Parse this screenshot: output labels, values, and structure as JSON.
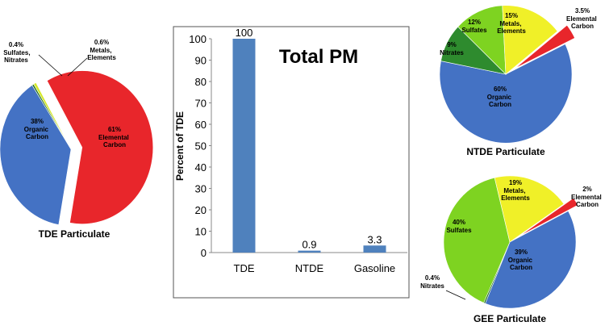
{
  "chart_data": [
    {
      "type": "pie",
      "title": "TDE Particulate",
      "slices": [
        {
          "label": "Organic Carbon",
          "pct_text": "38%",
          "value": 38,
          "color": "#4472c4"
        },
        {
          "label": "Sulfates, Nitrates",
          "pct_text": "0.4%",
          "value": 0.4,
          "color": "#1e6b1e"
        },
        {
          "label": "Metals, Elements",
          "pct_text": "0.6%",
          "value": 0.6,
          "color": "#d4e829"
        },
        {
          "label": "Elemental Carbon",
          "pct_text": "61%",
          "value": 61,
          "color": "#e8262b",
          "exploded": true
        }
      ]
    },
    {
      "type": "bar",
      "title": "Total PM",
      "categories": [
        "TDE",
        "NTDE",
        "Gasoline"
      ],
      "values": [
        100,
        0.9,
        3.3
      ],
      "value_labels": [
        "100",
        "0.9",
        "3.3"
      ],
      "ylabel": "Percent of TDE",
      "ylim": [
        0,
        100
      ],
      "yticks": [
        0,
        10,
        20,
        30,
        40,
        50,
        60,
        70,
        80,
        90,
        100
      ],
      "color": "#4f81bd"
    },
    {
      "type": "pie",
      "title": "NTDE Particulate",
      "slices": [
        {
          "label": "Organic Carbon",
          "pct_text": "60%",
          "value": 60,
          "color": "#4472c4"
        },
        {
          "label": "Nitrates",
          "pct_text": "9%",
          "value": 9,
          "color": "#2e8b2e"
        },
        {
          "label": "Sulfates",
          "pct_text": "12%",
          "value": 12,
          "color": "#7ed321"
        },
        {
          "label": "Metals, Elements",
          "pct_text": "15%",
          "value": 15,
          "color": "#f0f028"
        },
        {
          "label": "Elemental Carbon",
          "pct_text": "3.5%",
          "value": 3.5,
          "color": "#e8262b",
          "exploded": true
        }
      ]
    },
    {
      "type": "pie",
      "title": "GEE Particulate",
      "slices": [
        {
          "label": "Organic Carbon",
          "pct_text": "39%",
          "value": 39,
          "color": "#4472c4"
        },
        {
          "label": "Nitrates",
          "pct_text": "0.4%",
          "value": 0.4,
          "color": "#1e6b1e"
        },
        {
          "label": "Sulfates",
          "pct_text": "40%",
          "value": 40,
          "color": "#7ed321"
        },
        {
          "label": "Metals, Elements",
          "pct_text": "19%",
          "value": 19,
          "color": "#f0f028"
        },
        {
          "label": "Elemental Carbon",
          "pct_text": "2%",
          "value": 2,
          "color": "#e8262b",
          "exploded": true
        }
      ]
    }
  ]
}
